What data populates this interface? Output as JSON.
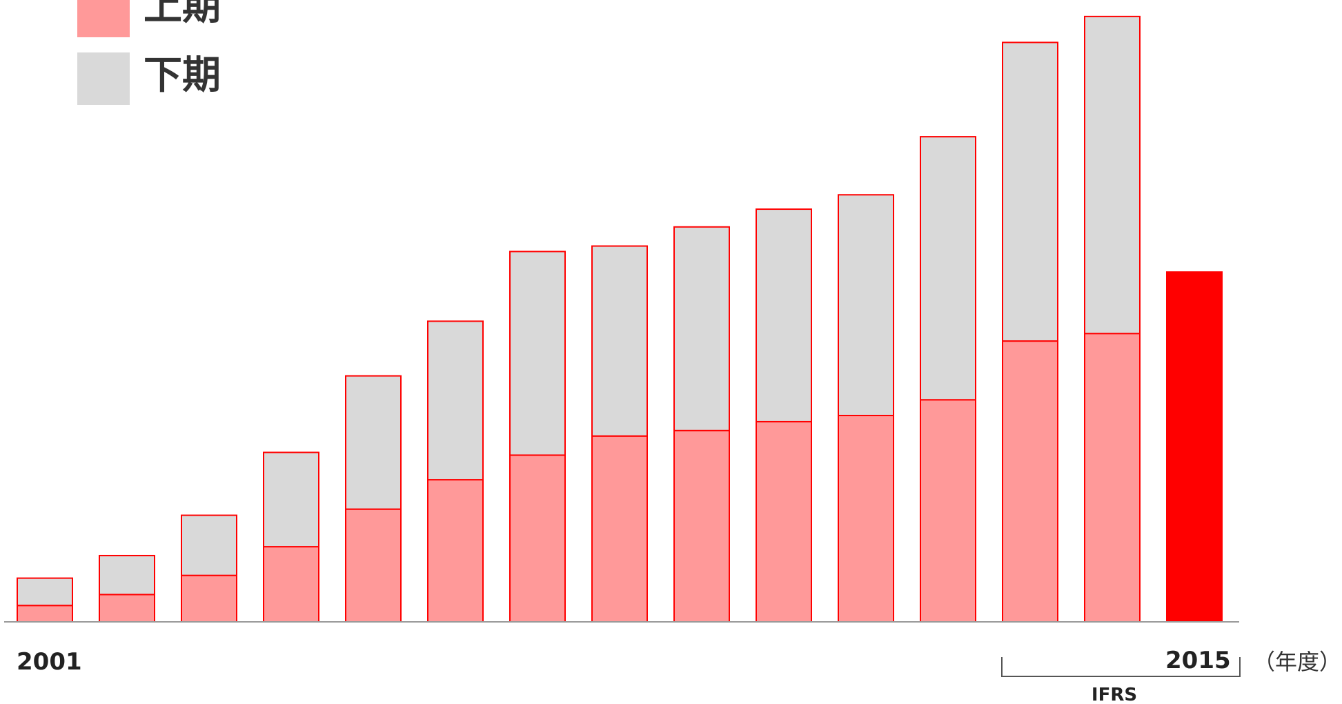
{
  "chart_data": {
    "type": "bar",
    "stacked": true,
    "categories": [
      "2001",
      "2002",
      "2003",
      "2004",
      "2005",
      "2006",
      "2007",
      "2008",
      "2009",
      "2010",
      "2011",
      "2012",
      "2013",
      "2014",
      "2015"
    ],
    "tick_labels": {
      "first": "2001",
      "last": "2015"
    },
    "series": [
      {
        "name": "上期",
        "color": "#ff9999",
        "values": [
          24,
          40,
          68,
          110,
          165,
          208,
          244,
          272,
          280,
          293,
          302,
          325,
          411,
          422,
          512
        ]
      },
      {
        "name": "下期",
        "color": "#d9d9d9",
        "values": [
          40,
          57,
          88,
          138,
          195,
          232,
          298,
          278,
          298,
          311,
          323,
          385,
          437,
          464,
          null
        ]
      }
    ],
    "highlight": {
      "category": "2015",
      "color": "#ff0000"
    },
    "bar_outline_color": "#ff0000",
    "axis_color": "#999999",
    "ylim": [
      0,
      900
    ],
    "xlabel": "",
    "ylabel": "",
    "unit_label": "（年度）",
    "bracket": {
      "label": "IFRS",
      "from": "2013",
      "to": "2015"
    },
    "legend": {
      "placement": "top-left"
    },
    "grid": false
  }
}
